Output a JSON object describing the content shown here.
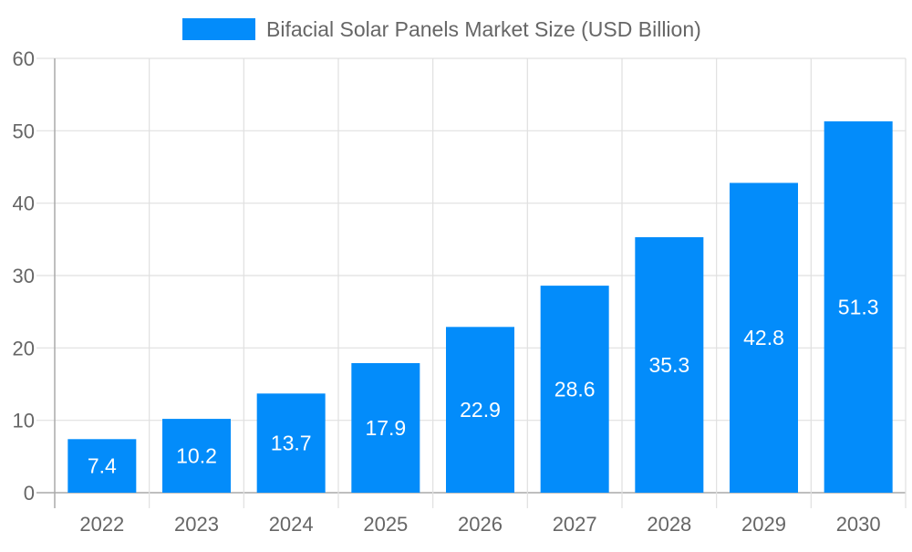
{
  "chart_data": {
    "type": "bar",
    "title": "",
    "xlabel": "",
    "ylabel": "",
    "categories": [
      "2022",
      "2023",
      "2024",
      "2025",
      "2026",
      "2027",
      "2028",
      "2029",
      "2030"
    ],
    "series": [
      {
        "name": "Bifacial Solar Panels Market Size (USD Billion)",
        "values": [
          7.4,
          10.2,
          13.7,
          17.9,
          22.9,
          28.6,
          35.3,
          42.8,
          51.3
        ]
      }
    ],
    "ylim": [
      0,
      60
    ],
    "yticks": [
      0,
      10,
      20,
      30,
      40,
      50,
      60
    ],
    "grid": true,
    "legend": "top-center",
    "data_labels": true,
    "colors": {
      "bar": "#038cfa",
      "grid": "#e0e0e0",
      "axis": "#aaaaaa",
      "text": "#666666",
      "label": "#ffffff"
    }
  }
}
